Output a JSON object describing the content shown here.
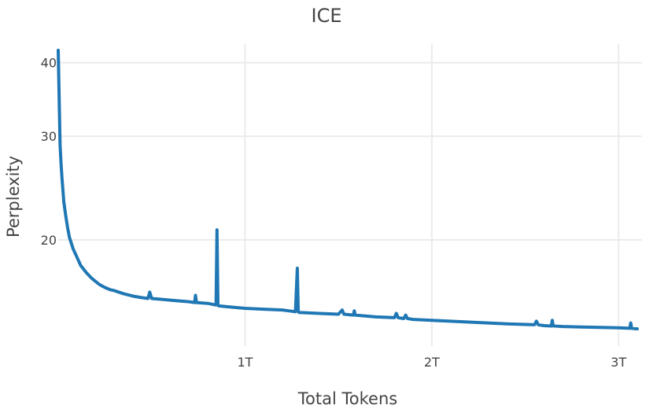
{
  "chart_data": {
    "type": "line",
    "title": "ICE",
    "xlabel": "Total Tokens",
    "ylabel": "Perplexity",
    "y_scale": "log",
    "xlim": [
      0.0,
      3.1
    ],
    "ylim": [
      13.2,
      42.5
    ],
    "grid": true,
    "legend": "none",
    "x_ticks": [
      {
        "value": 1,
        "label": "1T"
      },
      {
        "value": 2,
        "label": "2T"
      },
      {
        "value": 3,
        "label": "3T"
      }
    ],
    "y_ticks": [
      {
        "value": 20,
        "label": "20"
      },
      {
        "value": 30,
        "label": "30"
      },
      {
        "value": 40,
        "label": "40"
      }
    ],
    "series": [
      {
        "color": "#1f77b4",
        "x": [
          0.0,
          0.01,
          0.015,
          0.02,
          0.03,
          0.04,
          0.05,
          0.06,
          0.08,
          0.1,
          0.12,
          0.15,
          0.18,
          0.2,
          0.22,
          0.25,
          0.28,
          0.3,
          0.35,
          0.4,
          0.45,
          0.48,
          0.49,
          0.5,
          0.55,
          0.6,
          0.7,
          0.73,
          0.735,
          0.74,
          0.8,
          0.845,
          0.85,
          0.855,
          0.86,
          0.9,
          1.0,
          1.1,
          1.2,
          1.27,
          1.28,
          1.285,
          1.29,
          1.3,
          1.4,
          1.5,
          1.52,
          1.53,
          1.58,
          1.585,
          1.59,
          1.7,
          1.8,
          1.81,
          1.82,
          1.85,
          1.86,
          1.87,
          1.9,
          2.0,
          2.2,
          2.4,
          2.55,
          2.56,
          2.57,
          2.6,
          2.64,
          2.645,
          2.65,
          2.7,
          2.8,
          2.9,
          3.0,
          3.06,
          3.065,
          3.07,
          3.1
        ],
        "values": [
          42.0,
          29.0,
          27.0,
          25.5,
          23.2,
          22.0,
          21.0,
          20.2,
          19.3,
          18.7,
          18.1,
          17.6,
          17.2,
          17.0,
          16.8,
          16.6,
          16.45,
          16.4,
          16.2,
          16.05,
          15.95,
          15.9,
          16.3,
          15.9,
          15.85,
          15.8,
          15.7,
          15.65,
          16.1,
          15.65,
          15.6,
          15.5,
          20.8,
          15.5,
          15.45,
          15.4,
          15.3,
          15.25,
          15.2,
          15.1,
          17.9,
          15.1,
          15.05,
          15.05,
          15.0,
          14.95,
          15.2,
          14.95,
          14.9,
          15.15,
          14.9,
          14.8,
          14.75,
          15.0,
          14.75,
          14.7,
          14.9,
          14.7,
          14.65,
          14.6,
          14.5,
          14.4,
          14.35,
          14.55,
          14.35,
          14.3,
          14.28,
          14.6,
          14.28,
          14.25,
          14.22,
          14.2,
          14.18,
          14.15,
          14.45,
          14.15,
          14.12
        ]
      }
    ]
  }
}
